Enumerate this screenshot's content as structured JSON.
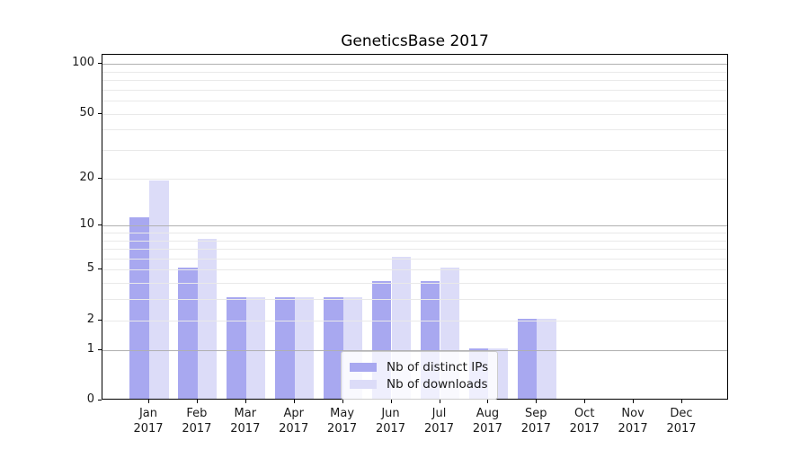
{
  "title": "GeneticsBase 2017",
  "chart_data": {
    "type": "bar",
    "title": "GeneticsBase 2017",
    "categories": [
      "Jan",
      "Feb",
      "Mar",
      "Apr",
      "May",
      "Jun",
      "Jul",
      "Aug",
      "Sep",
      "Oct",
      "Nov",
      "Dec"
    ],
    "category_year": "2017",
    "series": [
      {
        "name": "Nb of distinct IPs",
        "color": "#a8a8f0",
        "values": [
          11,
          5,
          3,
          3,
          3,
          4,
          4,
          1,
          2,
          0,
          0,
          0
        ]
      },
      {
        "name": "Nb of downloads",
        "color": "#dcdcf8",
        "values": [
          19,
          8,
          3,
          3,
          3,
          6,
          5,
          1,
          2,
          0,
          0,
          0
        ]
      }
    ],
    "yscale": "log1p",
    "ylim": [
      0,
      113
    ],
    "yticks": [
      100,
      50,
      20,
      10,
      5,
      2,
      1,
      0
    ],
    "major_gridlines": [
      100,
      10,
      1
    ],
    "minor_gridlines": [
      90,
      80,
      70,
      60,
      50,
      40,
      30,
      20,
      9,
      8,
      7,
      6,
      5,
      4,
      3,
      2
    ],
    "grid": true,
    "legend_position": "lower center"
  },
  "colors": {
    "major_grid": "#b0b0b0",
    "minor_grid": "#e9e9e9",
    "spine": "#000000",
    "text": "#1a1a1a",
    "background": "#ffffff"
  }
}
